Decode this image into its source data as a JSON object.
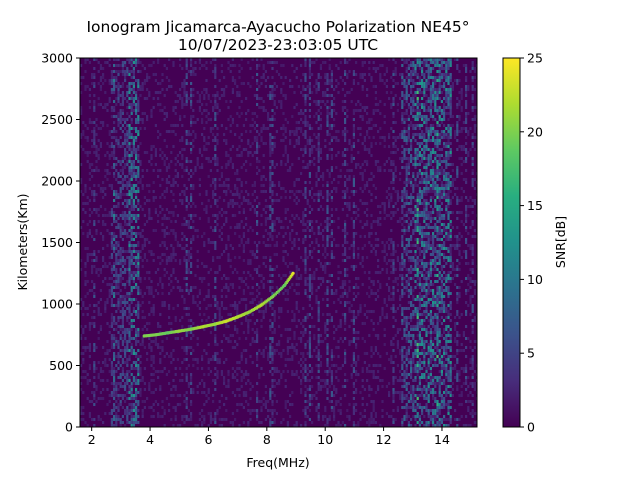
{
  "chart_data": {
    "type": "heatmap",
    "title": "Ionogram Jicamarca-Ayacucho Polarization NE45°",
    "subtitle": "10/07/2023-23:03:05 UTC",
    "xlabel": "Freq(MHz)",
    "ylabel": "Kilometers(Km)",
    "xlim": [
      1.6,
      15.2
    ],
    "ylim": [
      0,
      3000
    ],
    "x_ticks": [
      2,
      4,
      6,
      8,
      10,
      12,
      14
    ],
    "x_tick_labels": [
      "2",
      "4",
      "6",
      "8",
      "10",
      "12",
      "14"
    ],
    "y_ticks": [
      0,
      500,
      1000,
      1500,
      2000,
      2500,
      3000
    ],
    "y_tick_labels": [
      "0",
      "500",
      "1000",
      "1500",
      "2000",
      "2500",
      "3000"
    ],
    "colorbar": {
      "label": "SNR[dB]",
      "colormap": "viridis",
      "range": [
        0,
        25
      ],
      "ticks": [
        0,
        5,
        10,
        15,
        20,
        25
      ],
      "tick_labels": [
        "0",
        "5",
        "10",
        "15",
        "20",
        "25"
      ]
    },
    "grid": false,
    "trace": {
      "name": "",
      "x": [
        3.8,
        4.2,
        4.6,
        5.0,
        5.4,
        5.8,
        6.2,
        6.6,
        7.0,
        7.4,
        7.8,
        8.2,
        8.6,
        8.9
      ],
      "y": [
        740,
        750,
        765,
        780,
        795,
        815,
        835,
        860,
        895,
        935,
        990,
        1060,
        1150,
        1250
      ],
      "snr": [
        20,
        20,
        19,
        21,
        20,
        22,
        21,
        23,
        22,
        21,
        22,
        20,
        19,
        24
      ]
    },
    "noise_bands_mhz": [
      {
        "x": [
          3.2,
          3.6
        ],
        "level": 6
      },
      {
        "x": [
          13.0,
          14.3
        ],
        "level": 6
      },
      {
        "x": [
          12.6,
          13.0
        ],
        "level": 4
      },
      {
        "x": [
          2.6,
          3.2
        ],
        "level": 3
      }
    ]
  }
}
